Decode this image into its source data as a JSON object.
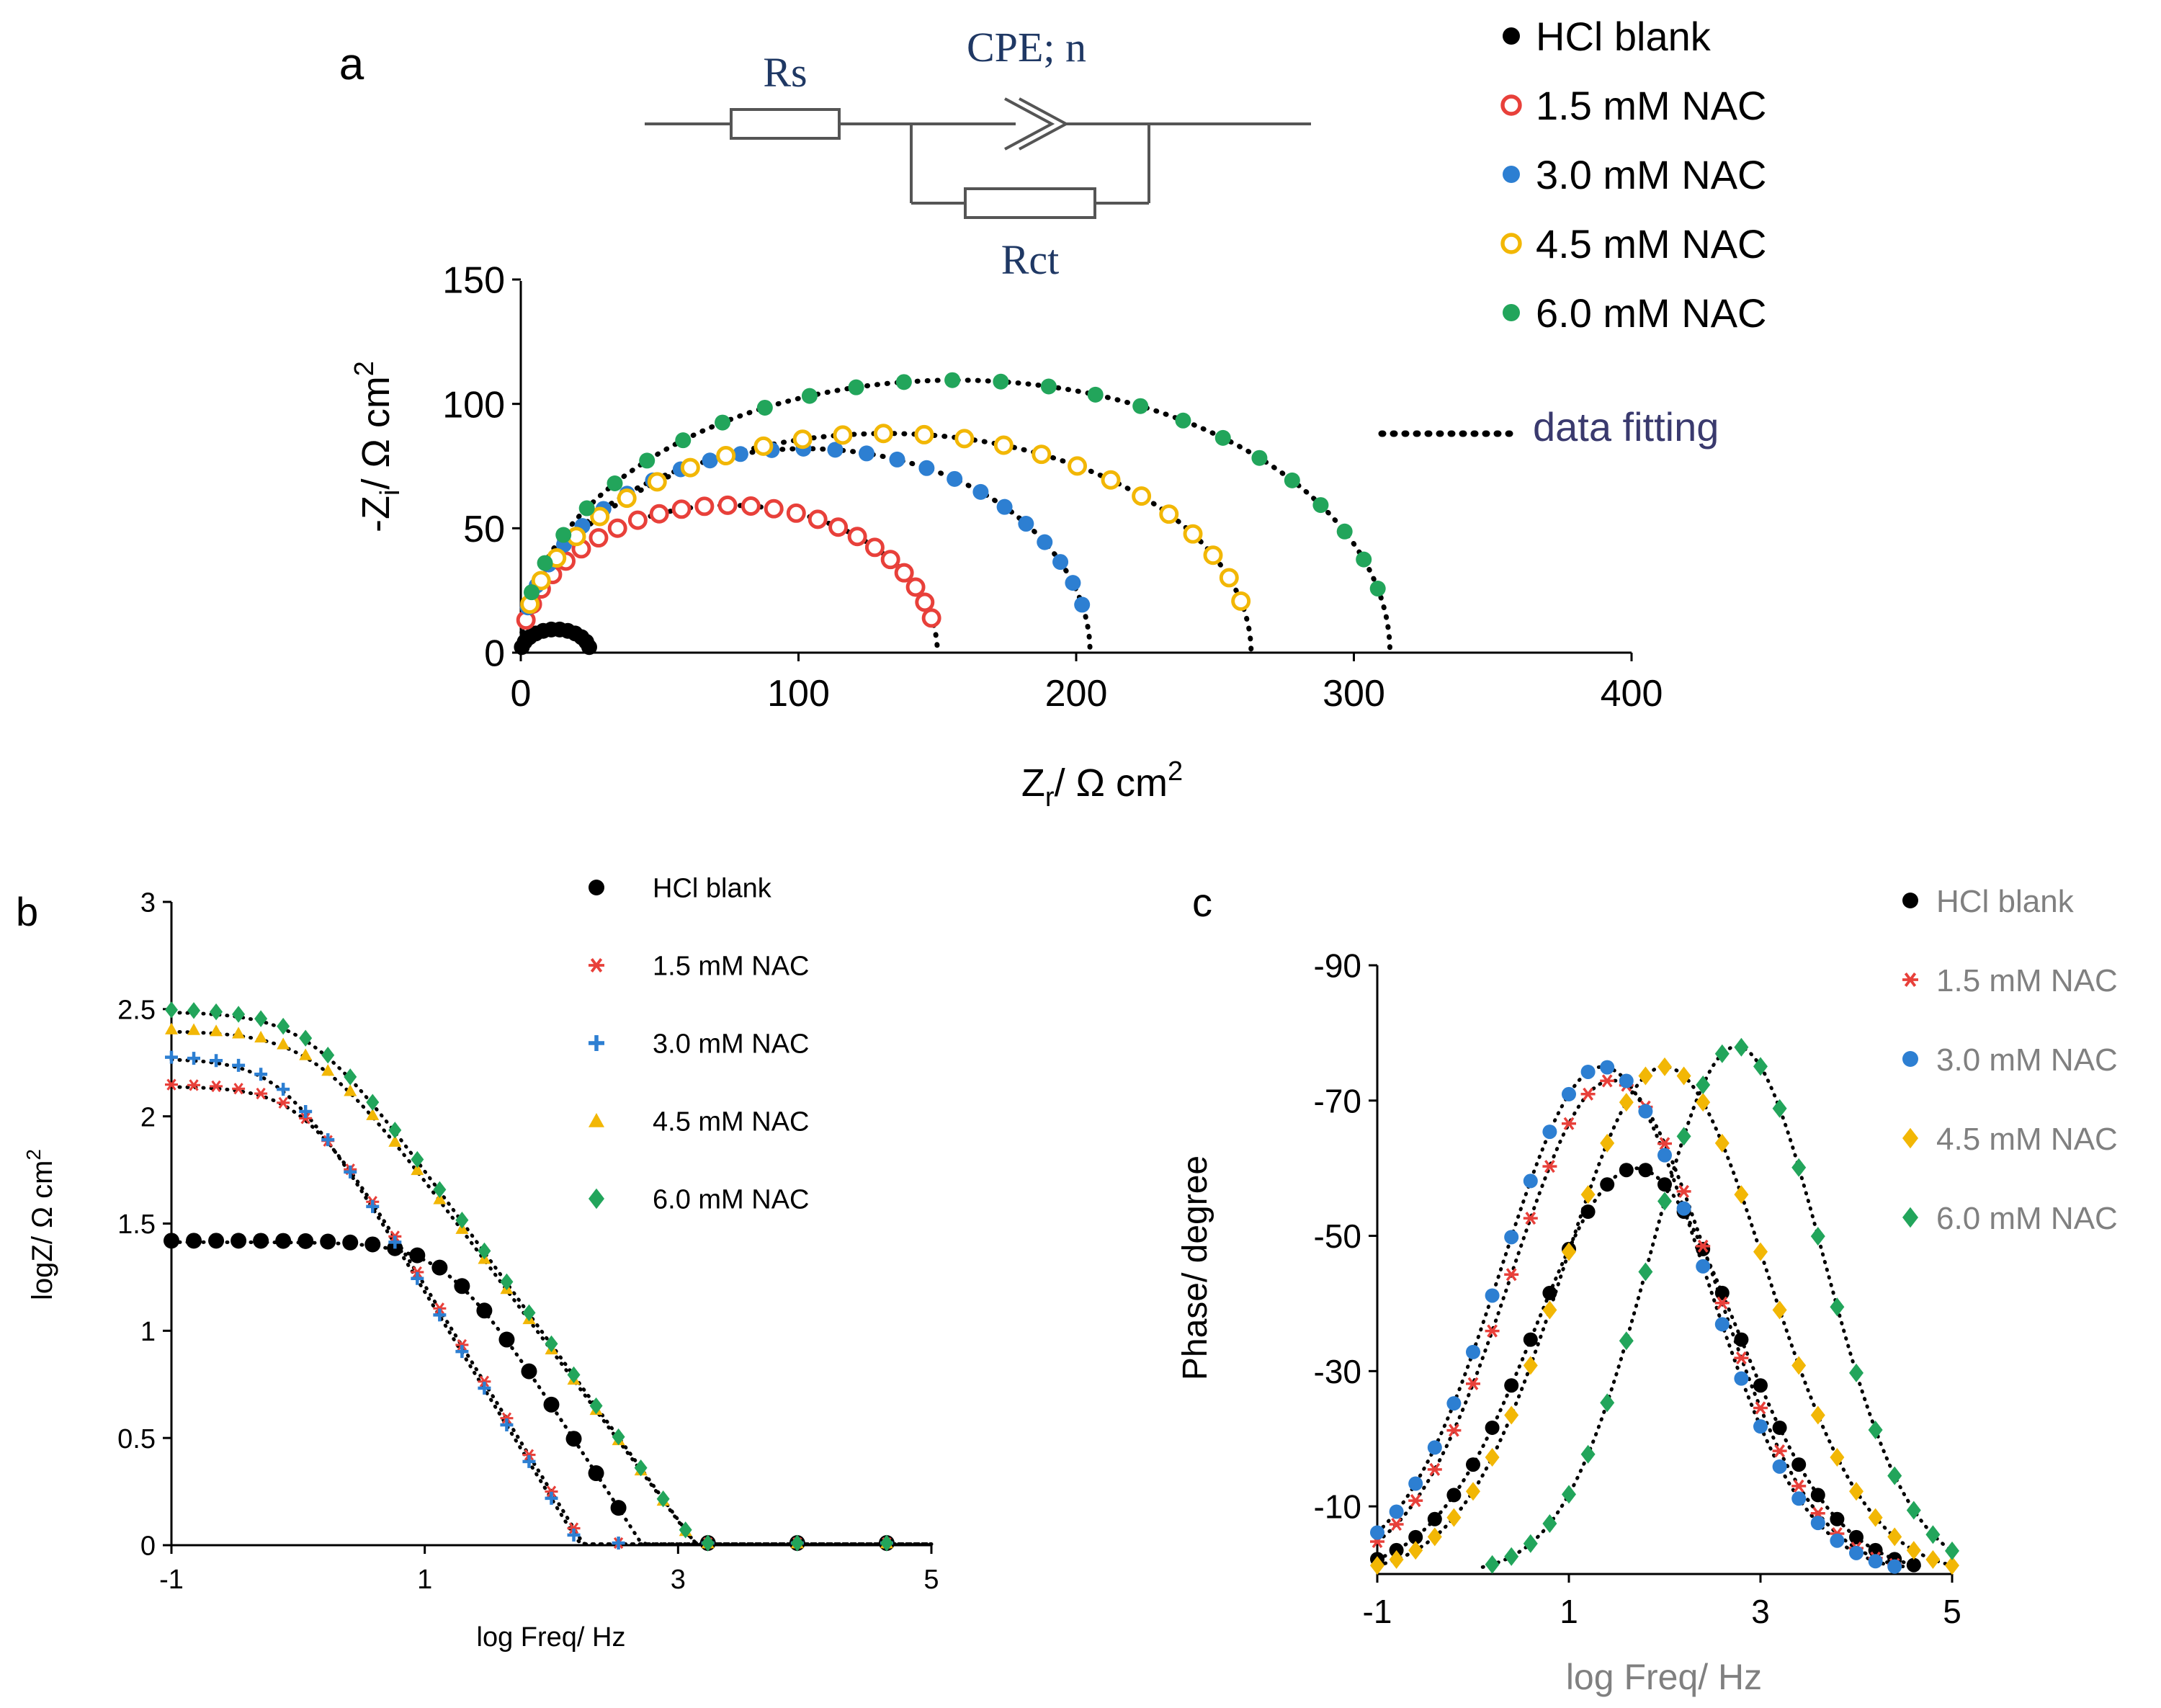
{
  "colors": {
    "blank": "#000000",
    "nac15": "#e8403a",
    "nac30": "#2d7fd2",
    "nac45": "#f2b705",
    "nac60": "#22a55b",
    "fit": "#000000",
    "grey_text": "#808080",
    "circuit_text": "#1f3864"
  },
  "circuit": {
    "rs_label": "Rs",
    "cpe_label": "CPE; n",
    "rct_label": "Rct"
  },
  "chart_data": [
    {
      "panel": "a",
      "panel_label": "a",
      "type": "scatter",
      "title": "",
      "xlabel_main": "Z",
      "xlabel_sub": "r",
      "xlabel_unit": "/  Ω cm",
      "xlabel_sup": "2",
      "ylabel_main": "-Z",
      "ylabel_sub": "i",
      "ylabel_unit": "/  Ω cm",
      "ylabel_sup": "2",
      "xlim": [
        0,
        400
      ],
      "ylim": [
        0,
        150
      ],
      "xticks": [
        0,
        100,
        200,
        300,
        400
      ],
      "yticks": [
        0,
        50,
        100,
        150
      ],
      "legend_position": "top-right",
      "fit_label": "data fitting",
      "series": [
        {
          "name": "HCl blank",
          "key": "blank",
          "marker": "dot",
          "R": 25,
          "k": 0.75
        },
        {
          "name": "1.5 mM NAC",
          "key": "nac15",
          "marker": "open-circle",
          "R": 150,
          "k": 0.79
        },
        {
          "name": "3.0 mM NAC",
          "key": "nac30",
          "marker": "dot",
          "R": 205,
          "k": 0.8
        },
        {
          "name": "4.5 mM NAC",
          "key": "nac45",
          "marker": "open-circle",
          "R": 263,
          "k": 0.67
        },
        {
          "name": "6.0 mM NAC",
          "key": "nac60",
          "marker": "dot",
          "R": 313,
          "k": 0.7
        }
      ]
    },
    {
      "panel": "b",
      "panel_label": "b",
      "type": "scatter",
      "title": "",
      "xlabel": "log Freq/ Hz",
      "ylabel": "logZ/ Ω cm",
      "ylabel_sup": "2",
      "xlim": [
        -1,
        5
      ],
      "ylim": [
        0,
        3
      ],
      "xticks": [
        -1,
        1,
        3,
        5
      ],
      "yticks": [
        0,
        0.5,
        1,
        1.5,
        2,
        2.5,
        3
      ],
      "legend_position": "top-right",
      "series": [
        {
          "name": "HCl blank",
          "key": "blank",
          "marker": "dot",
          "low": 1.42,
          "fc": 15,
          "slope": 0.92
        },
        {
          "name": "1.5 mM NAC",
          "key": "nac15",
          "marker": "star",
          "low": 2.15,
          "fc": 1.1,
          "slope": 0.97
        },
        {
          "name": "3.0 mM NAC",
          "key": "nac30",
          "marker": "plus",
          "low": 2.28,
          "fc": 0.75,
          "slope": 0.97
        },
        {
          "name": "4.5 mM NAC",
          "key": "nac45",
          "marker": "triangle",
          "low": 2.41,
          "fc": 1.35,
          "slope": 0.8
        },
        {
          "name": "6.0 mM NAC",
          "key": "nac60",
          "marker": "diamond",
          "low": 2.5,
          "fc": 1.25,
          "slope": 0.82
        }
      ]
    },
    {
      "panel": "c",
      "panel_label": "c",
      "type": "scatter",
      "title": "",
      "xlabel": "log Freq/ Hz",
      "ylabel": "Phase/ degree",
      "xlim": [
        -1,
        5
      ],
      "ylim": [
        0,
        -90
      ],
      "xticks": [
        -1,
        1,
        3,
        5
      ],
      "yticks": [
        -90,
        -70,
        -50,
        -30,
        -10
      ],
      "ytick_labels": [
        "-90",
        "-70",
        "-50",
        "-30",
        "-10"
      ],
      "legend_position": "top-right",
      "series": [
        {
          "name": "HCl blank",
          "key": "blank",
          "marker": "dot",
          "peak": -60,
          "center": 1.7,
          "sigma": 1.05
        },
        {
          "name": "1.5 mM NAC",
          "key": "nac15",
          "marker": "star",
          "peak": -73,
          "center": 1.45,
          "sigma": 1.05
        },
        {
          "name": "3.0 mM NAC",
          "key": "nac30",
          "marker": "dot",
          "peak": -75,
          "center": 1.35,
          "sigma": 1.05
        },
        {
          "name": "4.5 mM NAC",
          "key": "nac45",
          "marker": "diamond",
          "peak": -75,
          "center": 2.0,
          "sigma": 1.05
        },
        {
          "name": "6.0 mM NAC",
          "key": "nac60",
          "marker": "diamond",
          "peak": -78,
          "center": 2.75,
          "sigma": 0.9
        }
      ]
    }
  ]
}
